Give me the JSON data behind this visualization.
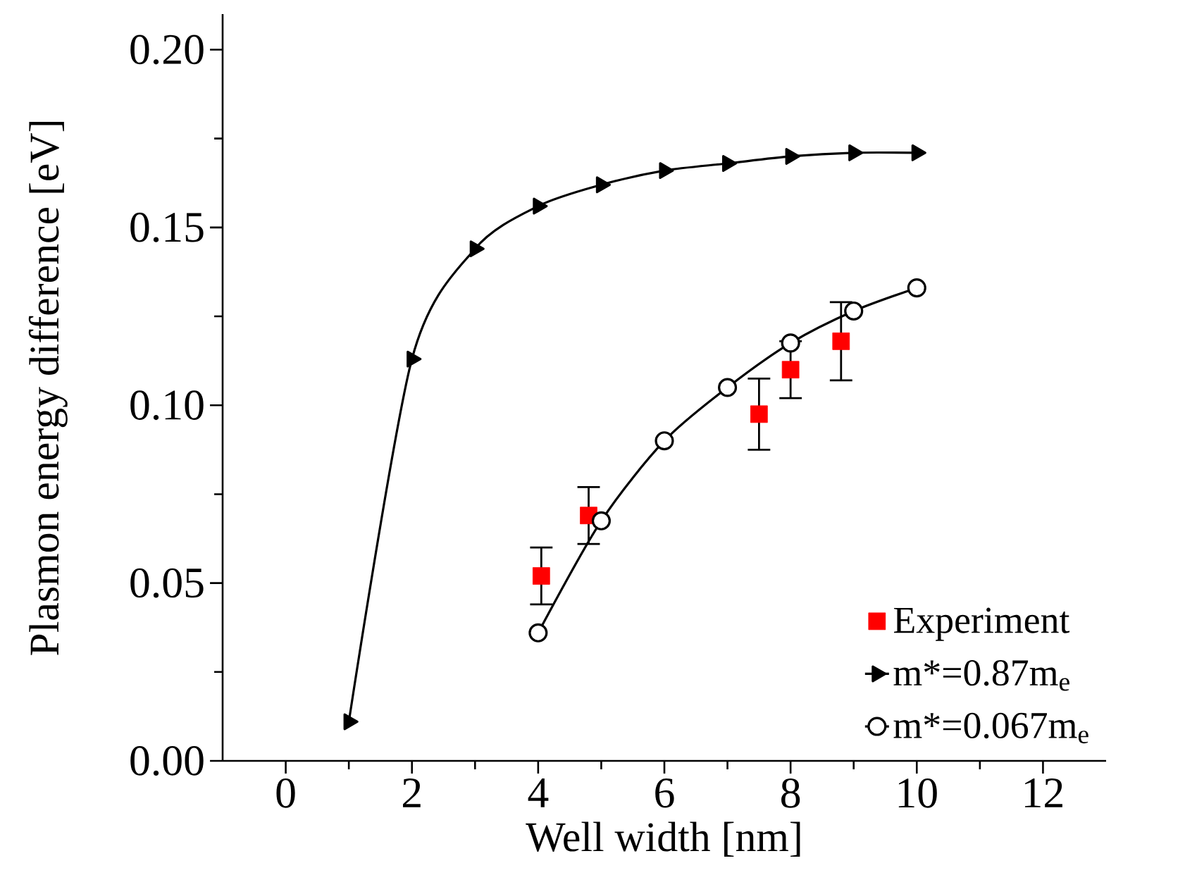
{
  "chart_data": {
    "type": "line",
    "xlabel": "Well width [nm]",
    "ylabel": "Plasmon energy difference [eV]",
    "xlim": [
      -1,
      13
    ],
    "xticks": [
      0,
      2,
      4,
      6,
      8,
      10,
      12
    ],
    "ylim": [
      0,
      0.21
    ],
    "yticks": [
      {
        "value": 0,
        "label": "0.00"
      },
      {
        "value": 0.05,
        "label": "0.05"
      },
      {
        "value": 0.1,
        "label": "0.10"
      },
      {
        "value": 0.15,
        "label": "0.15"
      },
      {
        "value": 0.2,
        "label": "0.20"
      }
    ],
    "grid": false,
    "legend": "bottom right",
    "series": [
      {
        "name": "Experiment",
        "type": "scatter",
        "marker": "square",
        "color": "#ff0000",
        "x": [
          4.05,
          4.8,
          7.5,
          8.0,
          8.8
        ],
        "values": [
          0.052,
          0.069,
          0.0975,
          0.11,
          0.118
        ],
        "errors": [
          0.008,
          0.008,
          0.01,
          0.008,
          0.011
        ]
      },
      {
        "name": "m*=0.87m$_{e}$",
        "marker": "triangle",
        "color": "#000000",
        "x": [
          1,
          2,
          3,
          4,
          5,
          6,
          7,
          8,
          9,
          10
        ],
        "values": [
          0.011,
          0.113,
          0.144,
          0.156,
          0.162,
          0.166,
          0.168,
          0.17,
          0.171,
          0.171
        ]
      },
      {
        "name": "m*=0.067m$_{e}$",
        "marker": "circle",
        "color": "#000000",
        "x": [
          4,
          5,
          6,
          7,
          8,
          9,
          10
        ],
        "values": [
          0.036,
          0.0675,
          0.09,
          0.105,
          0.1175,
          0.1265,
          0.133
        ]
      }
    ]
  }
}
